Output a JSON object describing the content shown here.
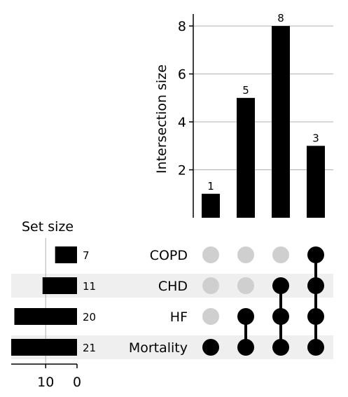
{
  "chart_data": {
    "type": "upset",
    "intersections": {
      "ylabel": "Intersection size",
      "yticks": [
        2,
        4,
        6,
        8
      ],
      "ylim": [
        0,
        8.5
      ],
      "values": [
        1,
        5,
        8,
        3
      ],
      "labels": [
        "1",
        "5",
        "8",
        "3"
      ],
      "membership": [
        [
          "Mortality"
        ],
        [
          "HF",
          "Mortality"
        ],
        [
          "CHD",
          "HF",
          "Mortality"
        ],
        [
          "COPD",
          "CHD",
          "HF",
          "Mortality"
        ]
      ]
    },
    "sets": {
      "title": "Set size",
      "names": [
        "COPD",
        "CHD",
        "HF",
        "Mortality"
      ],
      "sizes": [
        7,
        11,
        20,
        21
      ],
      "size_labels": [
        "7",
        "11",
        "20",
        "21"
      ],
      "xticks": [
        10,
        0
      ],
      "xlim": [
        0,
        21
      ]
    },
    "colors": {
      "bar": "#000000",
      "grid": "#b0b0b0",
      "inactive_dot": "#cfcfcf",
      "row_shade": "#efefef"
    }
  }
}
